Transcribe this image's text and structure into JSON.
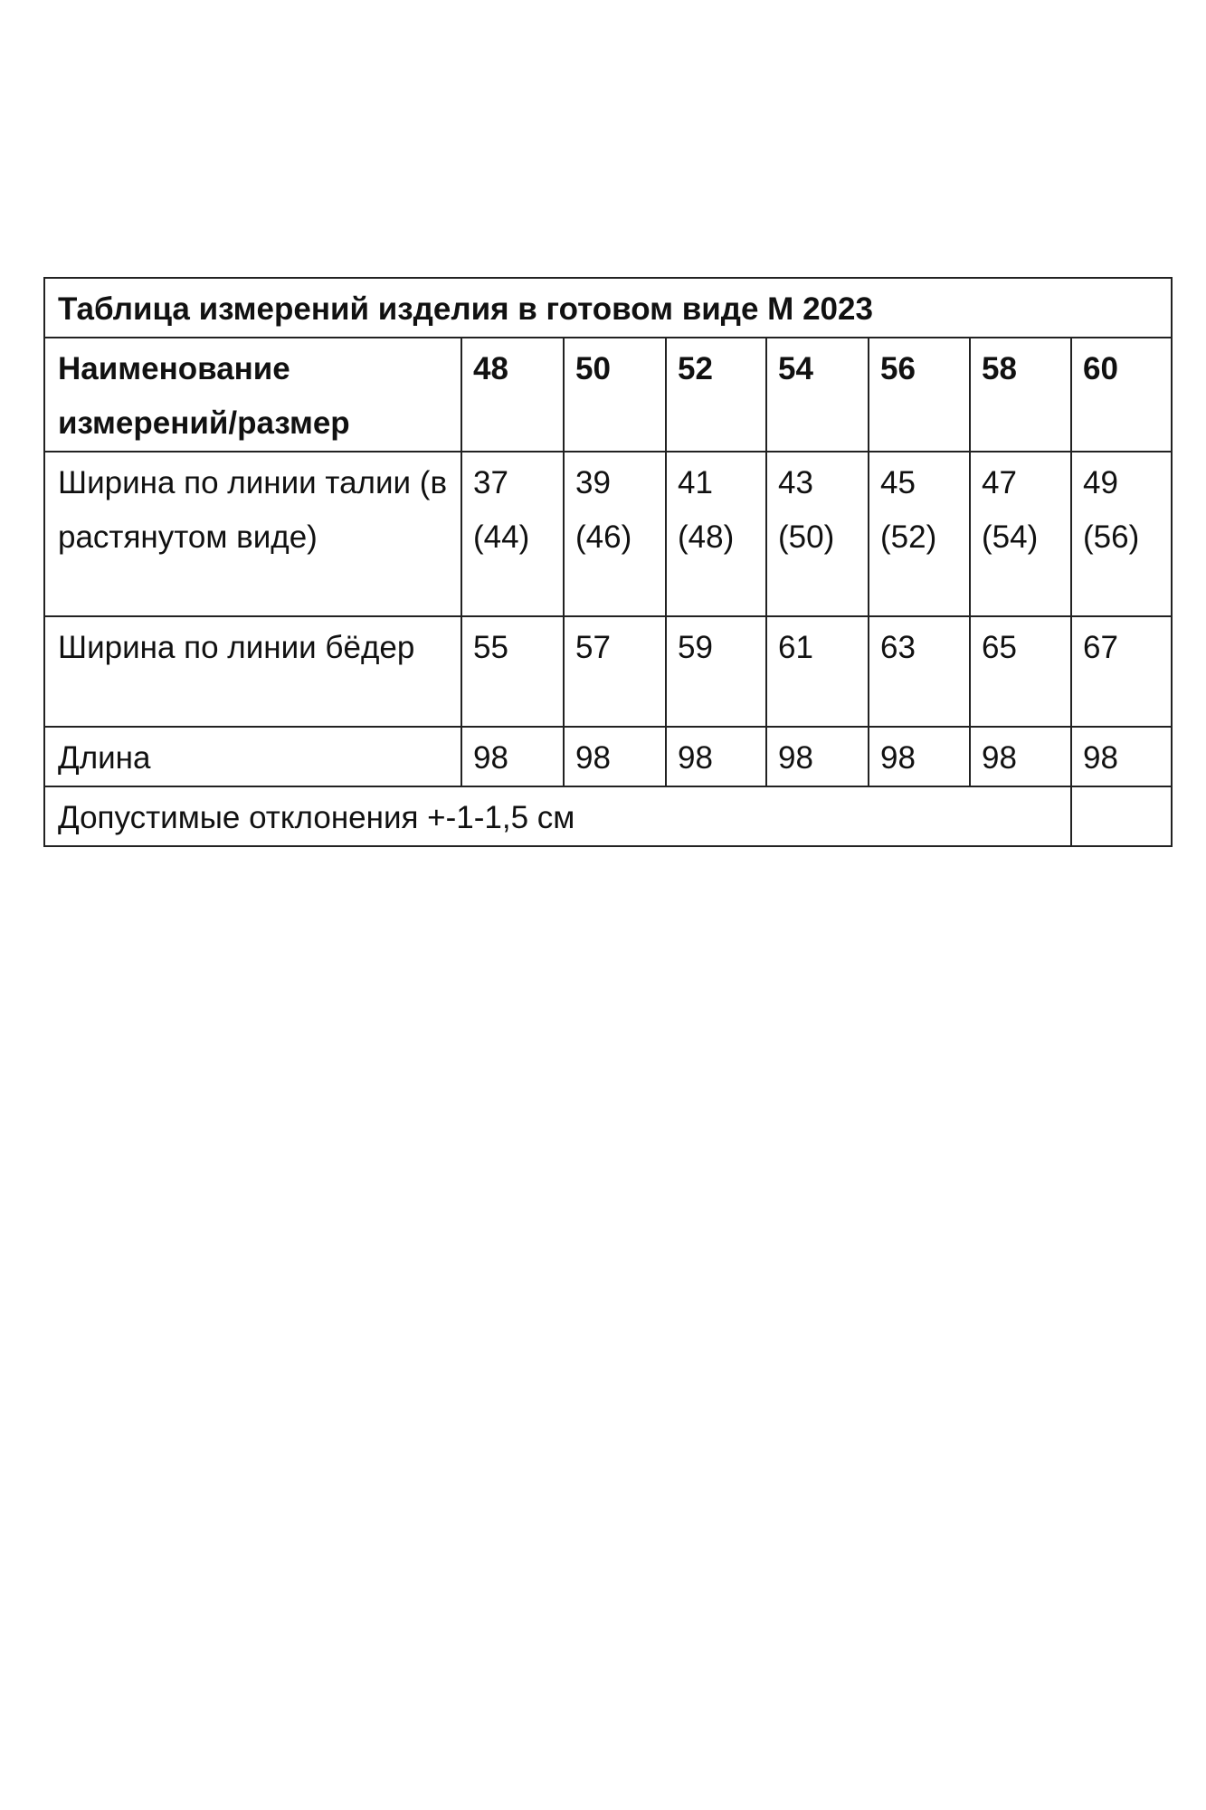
{
  "title": "Таблица измерений изделия в готовом виде М 2023",
  "header": {
    "label": "Наименование измерений/размер",
    "sizes": [
      "48",
      "50",
      "52",
      "54",
      "56",
      "58",
      "60"
    ]
  },
  "rows": [
    {
      "label": "Ширина по линии талии (в растянутом виде)",
      "values": [
        "37 (44)",
        "39 (46)",
        "41 (48)",
        "43 (50)",
        "45 (52)",
        "47 (54)",
        "49 (56)"
      ]
    },
    {
      "label": "Ширина по линии бёдер",
      "values": [
        "55",
        "57",
        "59",
        "61",
        "63",
        "65",
        "67"
      ]
    },
    {
      "label": "Длина",
      "values": [
        "98",
        "98",
        "98",
        "98",
        "98",
        "98",
        "98"
      ]
    }
  ],
  "note": "Допустимые отклонения +-1-1,5 см"
}
